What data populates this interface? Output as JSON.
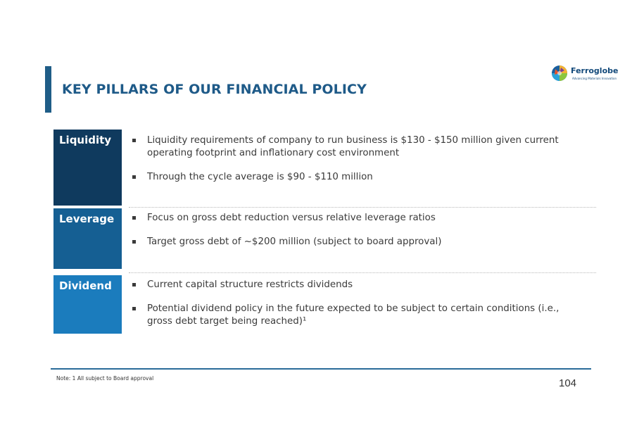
{
  "header": {
    "title": "KEY PILLARS OF OUR FINANCIAL POLICY",
    "logo_name": "Ferroglobe",
    "logo_tagline": "Advancing Materials Innovation"
  },
  "pillars": [
    {
      "label": "Liquidity",
      "color": "#0f3a5e",
      "bullets": [
        "Liquidity requirements of company to run business is $130 - $150 million given current operating footprint and inflationary cost environment",
        "Through the cycle average is $90 - $110 million"
      ]
    },
    {
      "label": "Leverage",
      "color": "#155f93",
      "bullets": [
        "Focus on gross debt reduction versus relative leverage ratios",
        "Target gross debt of ~$200 million (subject to board approval)"
      ]
    },
    {
      "label": "Dividend",
      "color": "#1b7cbd",
      "bullets": [
        "Current capital structure restricts dividends",
        "Potential dividend policy in the future expected to be subject to certain conditions (i.e., gross debt target being reached)¹"
      ]
    }
  ],
  "footer": {
    "note": "Note: 1  All subject to Board approval",
    "page_number": "104"
  },
  "colors": {
    "accent": "#1e5a88",
    "footer_line": "#2a6b99"
  }
}
